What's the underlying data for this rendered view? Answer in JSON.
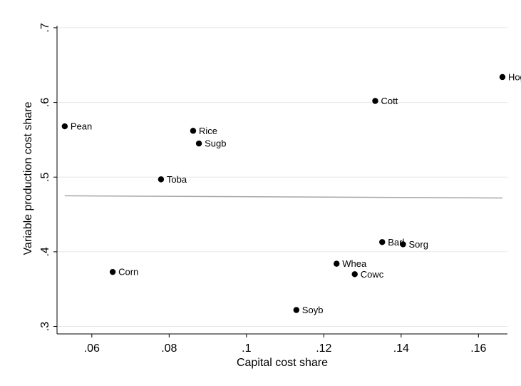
{
  "chart_data": {
    "type": "scatter",
    "title": "",
    "xlabel": "Capital cost share",
    "ylabel": "Variable production cost share",
    "xlim": [
      0.051,
      0.1675
    ],
    "ylim": [
      0.29,
      0.72
    ],
    "x_ticks": [
      0.06,
      0.08,
      0.1,
      0.12,
      0.14,
      0.16
    ],
    "x_tick_labels": [
      ".06",
      ".08",
      ".1",
      ".12",
      ".14",
      ".16"
    ],
    "y_ticks": [
      0.3,
      0.4,
      0.5,
      0.6,
      0.7
    ],
    "y_tick_labels": [
      ".3",
      ".4",
      ".5",
      ".6",
      ".7"
    ],
    "grid": true,
    "legend": "none",
    "colors": {
      "point": "#000000",
      "fit_line": "#a6a6a6",
      "grid": "#e6e6e6",
      "axis": "#000000"
    },
    "points": [
      {
        "label": "Pean",
        "x": 0.053,
        "y": 0.568
      },
      {
        "label": "Corn",
        "x": 0.0654,
        "y": 0.373
      },
      {
        "label": "Toba",
        "x": 0.0779,
        "y": 0.497
      },
      {
        "label": "Rice",
        "x": 0.0862,
        "y": 0.562
      },
      {
        "label": "Sugb",
        "x": 0.0877,
        "y": 0.545
      },
      {
        "label": "Soyb",
        "x": 0.1129,
        "y": 0.322
      },
      {
        "label": "Whea",
        "x": 0.1233,
        "y": 0.384
      },
      {
        "label": "Cowc",
        "x": 0.128,
        "y": 0.37
      },
      {
        "label": "Cott",
        "x": 0.1333,
        "y": 0.602
      },
      {
        "label": "Barl",
        "x": 0.1351,
        "y": 0.413
      },
      {
        "label": "Sorg",
        "x": 0.1405,
        "y": 0.41
      },
      {
        "label": "Hogs",
        "x": 0.1662,
        "y": 0.634
      }
    ],
    "fit_line": {
      "x": [
        0.053,
        0.1662
      ],
      "y": [
        0.475,
        0.472
      ]
    }
  }
}
